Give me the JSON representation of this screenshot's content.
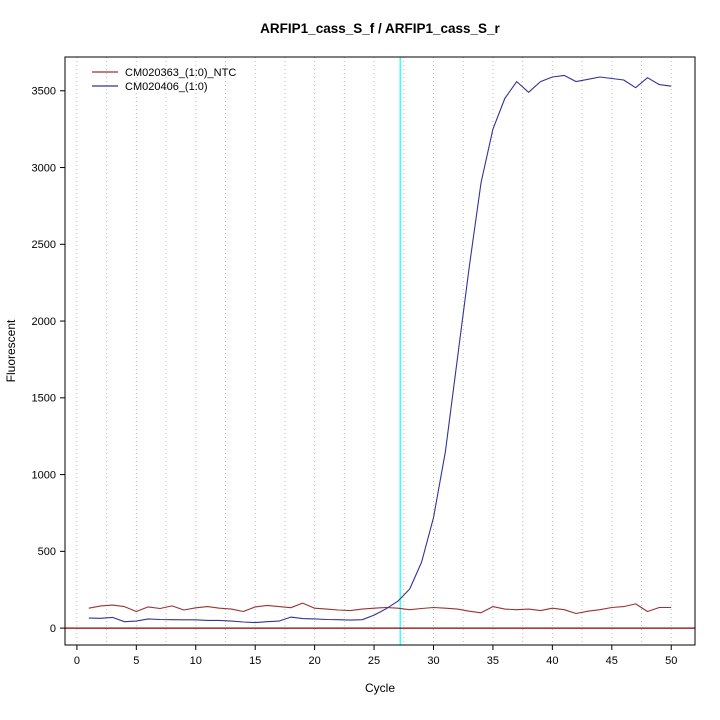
{
  "chart_data": {
    "type": "line",
    "title": "ARFIP1_cass_S_f / ARFIP1_cass_S_r",
    "xlabel": "Cycle",
    "ylabel": "Fluorescent",
    "xlim": [
      -1,
      52
    ],
    "ylim": [
      -110,
      3720
    ],
    "x_ticks": [
      0,
      5,
      10,
      15,
      20,
      25,
      30,
      35,
      40,
      45,
      50
    ],
    "y_ticks": [
      0,
      500,
      1000,
      1500,
      2000,
      2500,
      3000,
      3500
    ],
    "grid": {
      "vertical_step": 2.5,
      "color": "#bdbdbd"
    },
    "x": [
      1,
      2,
      3,
      4,
      5,
      6,
      7,
      8,
      9,
      10,
      11,
      12,
      13,
      14,
      15,
      16,
      17,
      18,
      19,
      20,
      21,
      22,
      23,
      24,
      25,
      26,
      27,
      28,
      29,
      30,
      31,
      32,
      33,
      34,
      35,
      36,
      37,
      38,
      39,
      40,
      41,
      42,
      43,
      44,
      45,
      46,
      47,
      48,
      49,
      50
    ],
    "series": [
      {
        "name": "CM020363_(1:0)_NTC",
        "color": "#993333",
        "values": [
          130,
          145,
          150,
          140,
          108,
          138,
          128,
          145,
          118,
          132,
          140,
          130,
          124,
          108,
          138,
          148,
          140,
          133,
          163,
          130,
          124,
          118,
          114,
          124,
          130,
          134,
          130,
          120,
          128,
          134,
          130,
          124,
          110,
          100,
          140,
          124,
          120,
          124,
          114,
          130,
          120,
          95,
          110,
          120,
          134,
          140,
          158,
          108,
          134,
          134
        ]
      },
      {
        "name": "CM020406_(1:0)",
        "color": "#333399",
        "values": [
          65,
          64,
          70,
          42,
          46,
          60,
          56,
          55,
          54,
          54,
          50,
          50,
          46,
          40,
          36,
          42,
          46,
          72,
          62,
          60,
          56,
          55,
          52,
          55,
          85,
          125,
          175,
          255,
          430,
          720,
          1150,
          1750,
          2350,
          2900,
          3250,
          3450,
          3560,
          3490,
          3560,
          3590,
          3600,
          3560,
          3575,
          3590,
          3580,
          3570,
          3520,
          3585,
          3540,
          3530
        ]
      }
    ],
    "threshold_line": {
      "y": 0,
      "color": "#8b0000"
    },
    "marker_line": {
      "x": 27.2,
      "color": "#00ffff"
    },
    "legend": {
      "position": "top-left"
    }
  }
}
